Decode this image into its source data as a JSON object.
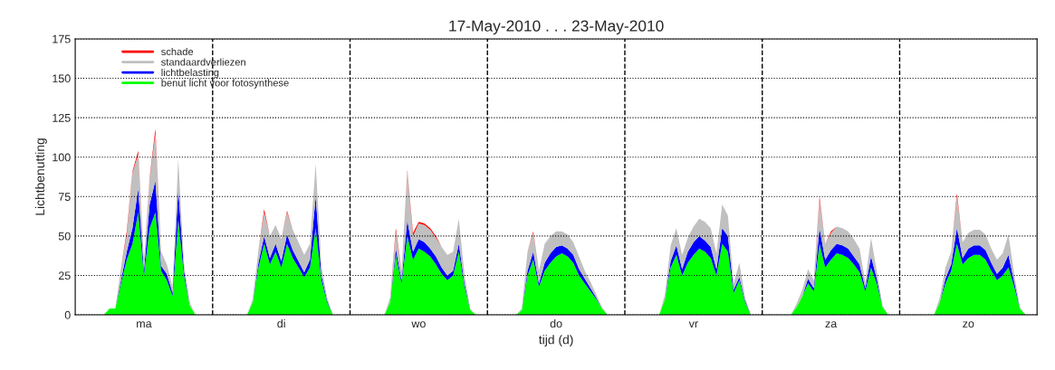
{
  "chart_data": {
    "type": "area",
    "stacked": true,
    "title": "17-May-2010 . . . 23-May-2010",
    "xlabel": "tijd (d)",
    "ylabel": "Lichtbenutting",
    "categories": [
      null,
      null,
      null,
      null,
      null,
      null,
      null,
      null,
      null,
      null,
      null,
      null,
      "ma",
      null,
      null,
      null,
      null,
      null,
      null,
      null,
      null,
      null,
      null,
      null,
      null,
      null,
      null,
      null,
      null,
      null,
      null,
      null,
      null,
      null,
      null,
      null,
      "di",
      null,
      null,
      null,
      null,
      null,
      null,
      null,
      null,
      null,
      null,
      null,
      null,
      null,
      null,
      null,
      null,
      null,
      null,
      null,
      null,
      null,
      null,
      null,
      "wo",
      null,
      null,
      null,
      null,
      null,
      null,
      null,
      null,
      null,
      null,
      null,
      null,
      null,
      null,
      null,
      null,
      null,
      null,
      null,
      null,
      null,
      null,
      null,
      "do",
      null,
      null,
      null,
      null,
      null,
      null,
      null,
      null,
      null,
      null,
      null,
      null,
      null,
      null,
      null,
      null,
      null,
      null,
      null,
      null,
      null,
      null,
      null,
      "vr",
      null,
      null,
      null,
      null,
      null,
      null,
      null,
      null,
      null,
      null,
      null,
      null,
      null,
      null,
      null,
      null,
      null,
      null,
      null,
      null,
      null,
      null,
      null,
      "za",
      null,
      null,
      null,
      null,
      null,
      null,
      null,
      null,
      null,
      null,
      null,
      null,
      null,
      null,
      null,
      null,
      null,
      null,
      null,
      null,
      null,
      null,
      null,
      "zo",
      null,
      null,
      null,
      null,
      null,
      null,
      null,
      null,
      null,
      null,
      null,
      null
    ],
    "series": [
      {
        "name": "benut licht voor fotosynthese",
        "color": "#00ff00",
        "values": [
          0,
          0,
          0,
          0,
          0,
          0,
          4,
          4,
          20,
          35,
          45,
          65,
          25,
          55,
          65,
          28,
          22,
          12,
          60,
          25,
          6,
          0,
          0,
          0,
          0,
          0,
          0,
          0,
          0,
          0,
          0,
          8,
          30,
          45,
          32,
          40,
          30,
          45,
          36,
          30,
          24,
          30,
          55,
          22,
          8,
          0,
          0,
          0,
          0,
          0,
          0,
          0,
          0,
          0,
          0,
          8,
          38,
          20,
          50,
          35,
          42,
          40,
          37,
          32,
          26,
          22,
          25,
          40,
          18,
          3,
          0,
          0,
          0,
          0,
          0,
          0,
          0,
          0,
          3,
          25,
          35,
          18,
          28,
          33,
          37,
          39,
          37,
          33,
          25,
          20,
          15,
          10,
          4,
          0,
          0,
          0,
          0,
          0,
          0,
          0,
          0,
          0,
          0,
          10,
          30,
          38,
          25,
          33,
          38,
          42,
          40,
          36,
          25,
          45,
          40,
          14,
          22,
          8,
          0,
          0,
          0,
          0,
          0,
          0,
          0,
          0,
          5,
          12,
          20,
          15,
          45,
          30,
          35,
          39,
          38,
          36,
          32,
          27,
          15,
          30,
          20,
          5,
          0,
          0,
          0,
          0,
          0,
          0,
          0,
          0,
          0,
          8,
          20,
          28,
          45,
          32,
          36,
          38,
          38,
          35,
          28,
          22,
          25,
          30,
          18,
          4,
          0,
          0,
          0
        ]
      },
      {
        "name": "lichtbelasting",
        "color": "#0000ff",
        "values": [
          0,
          0,
          0,
          0,
          0,
          0,
          0,
          0,
          2,
          5,
          10,
          15,
          3,
          15,
          20,
          3,
          4,
          2,
          20,
          3,
          0,
          0,
          0,
          0,
          0,
          0,
          0,
          0,
          0,
          0,
          0,
          0,
          3,
          5,
          4,
          5,
          4,
          6,
          5,
          4,
          3,
          5,
          20,
          3,
          1,
          0,
          0,
          0,
          0,
          0,
          0,
          0,
          0,
          0,
          0,
          0,
          4,
          2,
          10,
          5,
          6,
          6,
          5,
          5,
          4,
          3,
          3,
          5,
          2,
          0,
          0,
          0,
          0,
          0,
          0,
          0,
          0,
          0,
          0,
          3,
          5,
          2,
          5,
          6,
          6,
          5,
          5,
          5,
          4,
          3,
          2,
          1,
          0,
          0,
          0,
          0,
          0,
          0,
          0,
          0,
          0,
          0,
          0,
          0,
          4,
          6,
          4,
          7,
          8,
          8,
          7,
          7,
          4,
          10,
          10,
          2,
          2,
          1,
          0,
          0,
          0,
          0,
          0,
          0,
          0,
          0,
          0,
          0,
          3,
          2,
          10,
          5,
          6,
          6,
          6,
          6,
          5,
          5,
          2,
          7,
          3,
          0,
          0,
          0,
          0,
          0,
          0,
          0,
          0,
          0,
          0,
          0,
          3,
          4,
          10,
          4,
          6,
          6,
          6,
          6,
          5,
          4,
          5,
          8,
          3,
          0,
          0,
          0,
          0
        ]
      },
      {
        "name": "standaardverliezen",
        "color": "#c0c0c0",
        "values": [
          0,
          0,
          0,
          0,
          0,
          0,
          0,
          0,
          8,
          11,
          35,
          22,
          7,
          16,
          30,
          9,
          6,
          4,
          19,
          4,
          2,
          0,
          0,
          0,
          0,
          0,
          0,
          0,
          0,
          0,
          0,
          2,
          8,
          15,
          14,
          12,
          14,
          14,
          13,
          12,
          11,
          10,
          21,
          6,
          2,
          0,
          0,
          0,
          0,
          0,
          0,
          0,
          0,
          0,
          0,
          3,
          11,
          6,
          31,
          10,
          10,
          11,
          12,
          12,
          13,
          13,
          12,
          16,
          5,
          1,
          0,
          0,
          0,
          0,
          0,
          0,
          0,
          0,
          1,
          12,
          12,
          8,
          12,
          11,
          10,
          9,
          9,
          8,
          8,
          5,
          4,
          2,
          1,
          0,
          0,
          0,
          0,
          0,
          0,
          0,
          0,
          0,
          0,
          3,
          10,
          11,
          9,
          9,
          10,
          11,
          12,
          12,
          10,
          15,
          13,
          4,
          9,
          2,
          0,
          0,
          0,
          0,
          0,
          0,
          0,
          0,
          2,
          4,
          6,
          5,
          18,
          10,
          11,
          11,
          11,
          11,
          11,
          10,
          4,
          12,
          5,
          1,
          0,
          0,
          0,
          0,
          0,
          0,
          0,
          0,
          0,
          3,
          7,
          8,
          20,
          10,
          10,
          10,
          10,
          10,
          9,
          9,
          9,
          13,
          5,
          1,
          0,
          0,
          0
        ]
      },
      {
        "name": "schade",
        "color": "#ff0000",
        "values": [
          0,
          0,
          0,
          0,
          0,
          0,
          0,
          0,
          0,
          2,
          1,
          2,
          0,
          1,
          3,
          0,
          0,
          0,
          0,
          0,
          0,
          0,
          0,
          0,
          0,
          0,
          0,
          0,
          0,
          0,
          0,
          0,
          0,
          2,
          0,
          0,
          0,
          1,
          0,
          0,
          0,
          0,
          0,
          0,
          0,
          0,
          0,
          0,
          0,
          0,
          0,
          0,
          0,
          0,
          0,
          0,
          2,
          0,
          1,
          2,
          1,
          1,
          1,
          1,
          0,
          0,
          0,
          0,
          0,
          0,
          0,
          0,
          0,
          0,
          0,
          0,
          0,
          0,
          0,
          0,
          1,
          0,
          0,
          0,
          0,
          0,
          0,
          0,
          0,
          0,
          0,
          0,
          0,
          0,
          0,
          0,
          0,
          0,
          0,
          0,
          0,
          0,
          0,
          0,
          0,
          0,
          0,
          0,
          0,
          0,
          0,
          0,
          0,
          0,
          0,
          0,
          0,
          0,
          0,
          0,
          0,
          0,
          0,
          0,
          0,
          0,
          0,
          0,
          0,
          0,
          2,
          0,
          1,
          0,
          0,
          0,
          0,
          0,
          0,
          0,
          0,
          0,
          0,
          0,
          0,
          0,
          0,
          0,
          0,
          0,
          0,
          0,
          0,
          0,
          2,
          0,
          0,
          0,
          0,
          0,
          0,
          0,
          0,
          0,
          0,
          0,
          0,
          0,
          0
        ]
      }
    ],
    "ylim": [
      0,
      175
    ],
    "yticks": [
      0,
      25,
      50,
      75,
      100,
      125,
      150,
      175
    ],
    "grid": "y",
    "legend": "top left"
  }
}
